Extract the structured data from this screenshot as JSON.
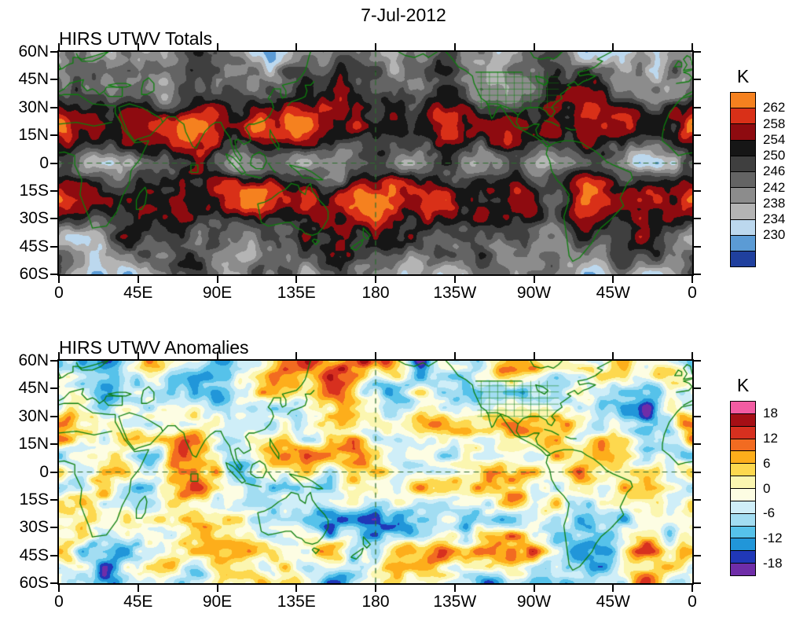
{
  "date_title": "7-Jul-2012",
  "axes": {
    "lat_labels": [
      "60N",
      "45N",
      "30N",
      "15N",
      "0",
      "15S",
      "30S",
      "45S",
      "60S"
    ],
    "lon_labels": [
      "0",
      "45E",
      "90E",
      "135E",
      "180",
      "135W",
      "90W",
      "45W",
      "0"
    ]
  },
  "panels": [
    {
      "title": "HIRS UTWV Totals",
      "colorbar": {
        "unit": "K",
        "labels": [
          "262",
          "258",
          "254",
          "250",
          "246",
          "242",
          "238",
          "234",
          "230"
        ],
        "colors": [
          "#f5811f",
          "#d93018",
          "#8e0b10",
          "#161616",
          "#3f3f3f",
          "#646464",
          "#8c8c8c",
          "#b4b4b4",
          "#bcd8ee",
          "#5b9bd5",
          "#20409e"
        ]
      }
    },
    {
      "title": "HIRS UTWV Anomalies",
      "colorbar": {
        "unit": "K",
        "labels": [
          "18",
          "12",
          "6",
          "0",
          "-6",
          "-12",
          "-18"
        ],
        "colors": [
          "#f25ca2",
          "#a50f15",
          "#d7301f",
          "#f26b21",
          "#fdae1b",
          "#fdd84e",
          "#fbf6b0",
          "#fdfde3",
          "#cfeef8",
          "#a2ddf2",
          "#56c2ea",
          "#2196d9",
          "#2038b8",
          "#6f2da8"
        ]
      }
    }
  ],
  "chart_data": [
    {
      "type": "heatmap",
      "title": "HIRS UTWV Totals",
      "date": "7-Jul-2012",
      "x_ticks": [
        "0",
        "45E",
        "90E",
        "135E",
        "180",
        "135W",
        "90W",
        "45W",
        "0"
      ],
      "y_ticks": [
        "60N",
        "45N",
        "30N",
        "15N",
        "0",
        "15S",
        "30S",
        "45S",
        "60S"
      ],
      "lon_range_deg": [
        0,
        360
      ],
      "lat_range_deg": [
        -60,
        60
      ],
      "colorbar_unit": "K",
      "colorbar_tick_values": [
        262,
        258,
        254,
        250,
        246,
        242,
        238,
        234,
        230
      ],
      "palette_top_to_bottom": [
        "#f5811f",
        "#d93018",
        "#8e0b10",
        "#161616",
        "#3f3f3f",
        "#646464",
        "#8c8c8c",
        "#b4b4b4",
        "#bcd8ee",
        "#5b9bd5",
        "#20409e"
      ],
      "legend_position": "right",
      "grid": false,
      "overlay": "green coastlines and political boundaries; dashed reference lines at equator and 180"
    },
    {
      "type": "heatmap",
      "title": "HIRS UTWV Anomalies",
      "date": "7-Jul-2012",
      "x_ticks": [
        "0",
        "45E",
        "90E",
        "135E",
        "180",
        "135W",
        "90W",
        "45W",
        "0"
      ],
      "y_ticks": [
        "60N",
        "45N",
        "30N",
        "15N",
        "0",
        "15S",
        "30S",
        "45S",
        "60S"
      ],
      "lon_range_deg": [
        0,
        360
      ],
      "lat_range_deg": [
        -60,
        60
      ],
      "colorbar_unit": "K",
      "colorbar_tick_values": [
        18,
        12,
        6,
        0,
        -6,
        -12,
        -18
      ],
      "palette_top_to_bottom": [
        "#f25ca2",
        "#a50f15",
        "#d7301f",
        "#f26b21",
        "#fdae1b",
        "#fdd84e",
        "#fbf6b0",
        "#fdfde3",
        "#cfeef8",
        "#a2ddf2",
        "#56c2ea",
        "#2196d9",
        "#2038b8",
        "#6f2da8"
      ],
      "legend_position": "right",
      "grid": false,
      "overlay": "green coastlines and political boundaries; dashed reference lines at equator and 180"
    }
  ]
}
